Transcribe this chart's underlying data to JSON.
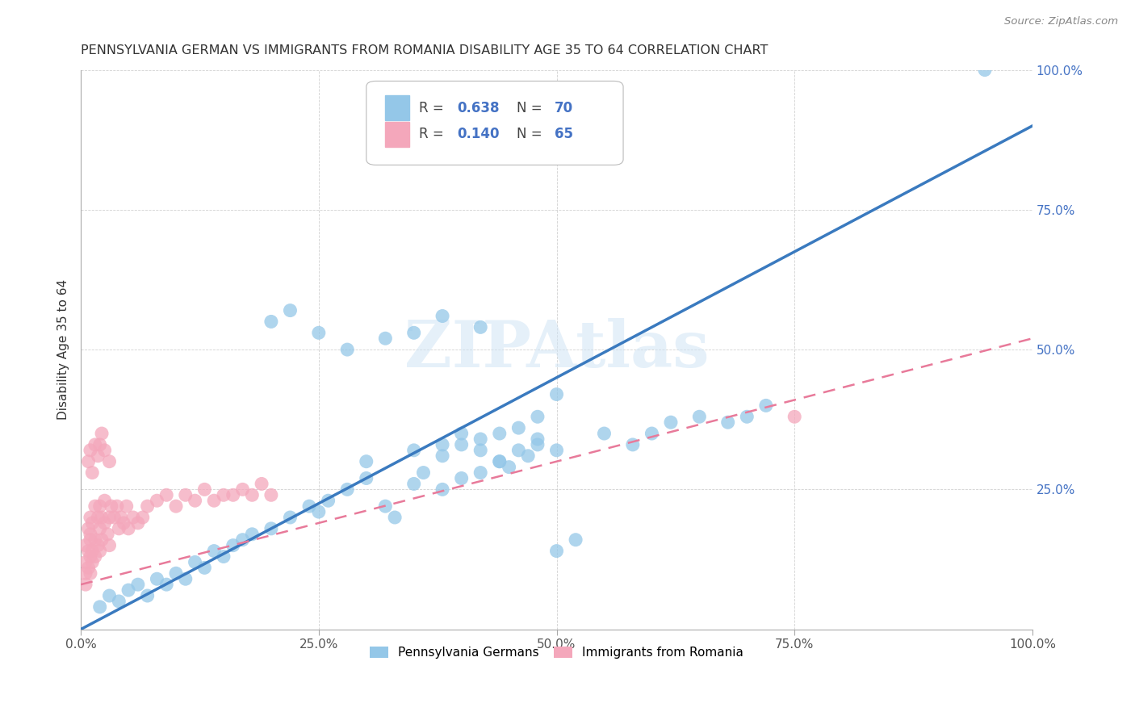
{
  "title": "PENNSYLVANIA GERMAN VS IMMIGRANTS FROM ROMANIA DISABILITY AGE 35 TO 64 CORRELATION CHART",
  "source": "Source: ZipAtlas.com",
  "ylabel": "Disability Age 35 to 64",
  "xlim": [
    0.0,
    1.0
  ],
  "ylim": [
    0.0,
    1.0
  ],
  "x_ticks": [
    0.0,
    0.25,
    0.5,
    0.75,
    1.0
  ],
  "y_ticks": [
    0.0,
    0.25,
    0.5,
    0.75,
    1.0
  ],
  "x_tick_labels": [
    "0.0%",
    "25.0%",
    "50.0%",
    "75.0%",
    "100.0%"
  ],
  "y_tick_labels": [
    "",
    "25.0%",
    "50.0%",
    "75.0%",
    "100.0%"
  ],
  "blue_R": 0.638,
  "blue_N": 70,
  "pink_R": 0.14,
  "pink_N": 65,
  "blue_color": "#94c7e8",
  "pink_color": "#f4a7bb",
  "blue_line_color": "#3a7abf",
  "pink_line_color": "#e87a9a",
  "legend1_label": "Pennsylvania Germans",
  "legend2_label": "Immigrants from Romania",
  "watermark": "ZIPAtlas",
  "blue_line_x0": 0.0,
  "blue_line_y0": 0.0,
  "blue_line_x1": 1.0,
  "blue_line_y1": 0.9,
  "pink_line_x0": 0.0,
  "pink_line_y0": 0.08,
  "pink_line_x1": 1.0,
  "pink_line_y1": 0.52,
  "blue_scatter_x": [
    0.02,
    0.03,
    0.04,
    0.05,
    0.06,
    0.07,
    0.08,
    0.09,
    0.1,
    0.11,
    0.12,
    0.13,
    0.14,
    0.15,
    0.16,
    0.17,
    0.18,
    0.2,
    0.22,
    0.24,
    0.25,
    0.26,
    0.28,
    0.3,
    0.32,
    0.33,
    0.35,
    0.36,
    0.38,
    0.4,
    0.42,
    0.44,
    0.45,
    0.47,
    0.48,
    0.5,
    0.52,
    0.3,
    0.35,
    0.38,
    0.4,
    0.42,
    0.44,
    0.46,
    0.48,
    0.5,
    0.55,
    0.58,
    0.6,
    0.62,
    0.65,
    0.68,
    0.7,
    0.72,
    0.38,
    0.4,
    0.42,
    0.44,
    0.46,
    0.48,
    0.2,
    0.22,
    0.25,
    0.28,
    0.32,
    0.35,
    0.38,
    0.42,
    0.95,
    0.5
  ],
  "blue_scatter_y": [
    0.04,
    0.06,
    0.05,
    0.07,
    0.08,
    0.06,
    0.09,
    0.08,
    0.1,
    0.09,
    0.12,
    0.11,
    0.14,
    0.13,
    0.15,
    0.16,
    0.17,
    0.18,
    0.2,
    0.22,
    0.21,
    0.23,
    0.25,
    0.27,
    0.22,
    0.2,
    0.26,
    0.28,
    0.25,
    0.27,
    0.28,
    0.3,
    0.29,
    0.31,
    0.33,
    0.14,
    0.16,
    0.3,
    0.32,
    0.31,
    0.33,
    0.32,
    0.3,
    0.32,
    0.34,
    0.32,
    0.35,
    0.33,
    0.35,
    0.37,
    0.38,
    0.37,
    0.38,
    0.4,
    0.33,
    0.35,
    0.34,
    0.35,
    0.36,
    0.38,
    0.55,
    0.57,
    0.53,
    0.5,
    0.52,
    0.53,
    0.56,
    0.54,
    1.0,
    0.42
  ],
  "pink_scatter_x": [
    0.005,
    0.005,
    0.005,
    0.005,
    0.008,
    0.008,
    0.008,
    0.01,
    0.01,
    0.01,
    0.01,
    0.01,
    0.012,
    0.012,
    0.012,
    0.015,
    0.015,
    0.015,
    0.018,
    0.018,
    0.02,
    0.02,
    0.02,
    0.022,
    0.022,
    0.025,
    0.025,
    0.028,
    0.03,
    0.03,
    0.032,
    0.035,
    0.038,
    0.04,
    0.042,
    0.045,
    0.048,
    0.05,
    0.055,
    0.06,
    0.065,
    0.07,
    0.08,
    0.09,
    0.1,
    0.11,
    0.12,
    0.13,
    0.14,
    0.15,
    0.16,
    0.17,
    0.18,
    0.19,
    0.2,
    0.008,
    0.01,
    0.012,
    0.015,
    0.018,
    0.02,
    0.022,
    0.025,
    0.03,
    0.75
  ],
  "pink_scatter_y": [
    0.12,
    0.15,
    0.1,
    0.08,
    0.14,
    0.18,
    0.11,
    0.16,
    0.13,
    0.2,
    0.1,
    0.17,
    0.14,
    0.19,
    0.12,
    0.22,
    0.16,
    0.13,
    0.2,
    0.15,
    0.18,
    0.14,
    0.22,
    0.16,
    0.2,
    0.19,
    0.23,
    0.17,
    0.2,
    0.15,
    0.22,
    0.2,
    0.22,
    0.18,
    0.2,
    0.19,
    0.22,
    0.18,
    0.2,
    0.19,
    0.2,
    0.22,
    0.23,
    0.24,
    0.22,
    0.24,
    0.23,
    0.25,
    0.23,
    0.24,
    0.24,
    0.25,
    0.24,
    0.26,
    0.24,
    0.3,
    0.32,
    0.28,
    0.33,
    0.31,
    0.33,
    0.35,
    0.32,
    0.3,
    0.38
  ]
}
